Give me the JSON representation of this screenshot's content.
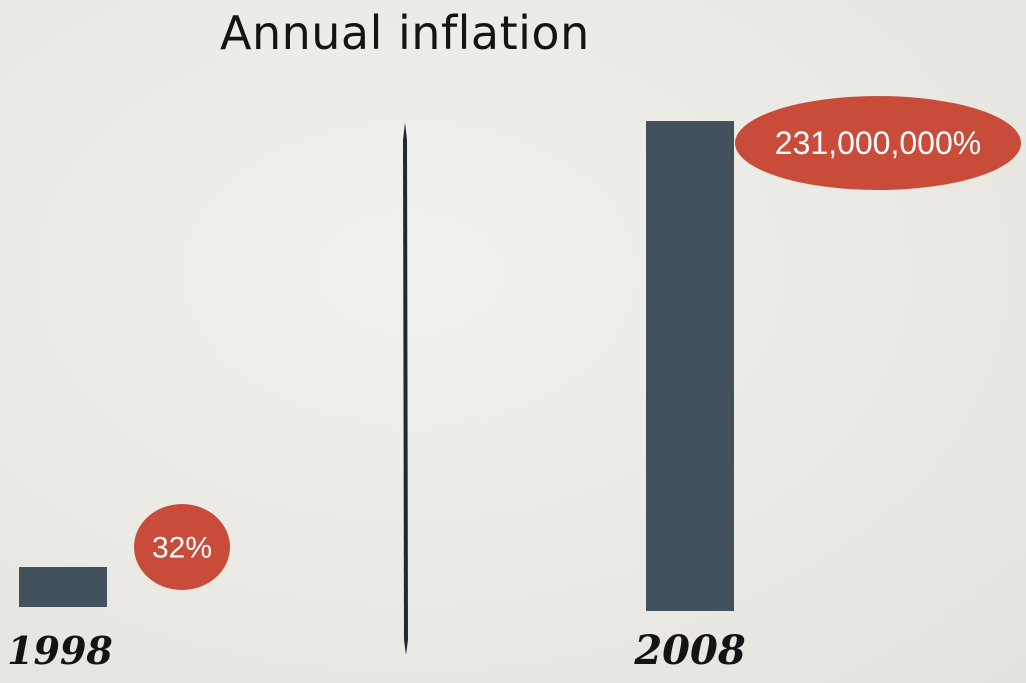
{
  "chart_data": {
    "type": "bar",
    "title": "Annual inflation",
    "categories": [
      "1998",
      "2008"
    ],
    "values": [
      32,
      231000000
    ],
    "value_labels": [
      "32%",
      "231,000,000%"
    ],
    "broken_axis": true,
    "colors": {
      "bar": "#43515c",
      "bubble": "#c94c3b",
      "divider": "#1e2a33"
    }
  }
}
